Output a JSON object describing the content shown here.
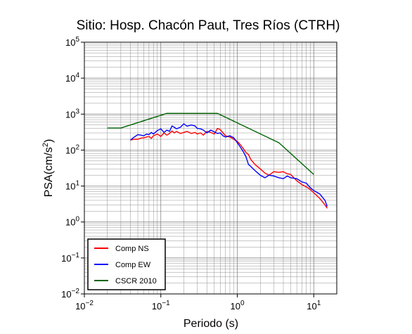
{
  "chart_data": {
    "type": "line",
    "title": "Sitio: Hosp. Chacón Paut, Tres Ríos (CTRH)",
    "xlabel": "Periodo (s)",
    "ylabel_base": "PSA(cm/s",
    "ylabel_sup": "2",
    "ylabel_end": ")",
    "x_scale": "log",
    "y_scale": "log",
    "xlim": [
      0.01,
      20
    ],
    "ylim": [
      0.01,
      100000
    ],
    "x_ticks": [
      {
        "value": 0.01,
        "base": "10",
        "exp": "−2"
      },
      {
        "value": 0.1,
        "base": "10",
        "exp": "−1"
      },
      {
        "value": 1,
        "base": "10",
        "exp": "0"
      },
      {
        "value": 10,
        "base": "10",
        "exp": "1"
      }
    ],
    "y_ticks": [
      {
        "value": 0.01,
        "base": "10",
        "exp": "−2"
      },
      {
        "value": 0.1,
        "base": "10",
        "exp": "−1"
      },
      {
        "value": 1,
        "base": "10",
        "exp": "0"
      },
      {
        "value": 10,
        "base": "10",
        "exp": "1"
      },
      {
        "value": 100,
        "base": "10",
        "exp": "2"
      },
      {
        "value": 1000,
        "base": "10",
        "exp": "3"
      },
      {
        "value": 10000,
        "base": "10",
        "exp": "4"
      },
      {
        "value": 100000,
        "base": "10",
        "exp": "5"
      }
    ],
    "grid": true,
    "legend_position": "bottom-left",
    "series": [
      {
        "name": "Comp NS",
        "color": "#ff0000",
        "x": [
          0.04,
          0.045,
          0.05,
          0.055,
          0.06,
          0.065,
          0.07,
          0.075,
          0.08,
          0.09,
          0.1,
          0.11,
          0.12,
          0.13,
          0.14,
          0.15,
          0.16,
          0.18,
          0.2,
          0.22,
          0.25,
          0.28,
          0.3,
          0.33,
          0.36,
          0.4,
          0.45,
          0.5,
          0.55,
          0.6,
          0.65,
          0.7,
          0.8,
          0.9,
          1.0,
          1.1,
          1.2,
          1.3,
          1.4,
          1.5,
          1.7,
          2.0,
          2.3,
          2.6,
          3.0,
          3.5,
          4.0,
          4.5,
          5.0,
          6.0,
          7.0,
          8.0,
          9.0,
          10.0,
          12.0,
          14.0,
          15.0
        ],
        "y": [
          190,
          200,
          200,
          215,
          220,
          230,
          240,
          210,
          250,
          280,
          240,
          300,
          260,
          290,
          340,
          300,
          330,
          290,
          310,
          330,
          290,
          310,
          280,
          300,
          260,
          330,
          310,
          280,
          400,
          370,
          300,
          250,
          230,
          200,
          175,
          140,
          110,
          85,
          75,
          55,
          40,
          30,
          23,
          20,
          25,
          24,
          25,
          22,
          21,
          14,
          11,
          9.5,
          8.0,
          6.5,
          4.5,
          3.0,
          2.4
        ]
      },
      {
        "name": "Comp EW",
        "color": "#0000ff",
        "x": [
          0.04,
          0.045,
          0.05,
          0.055,
          0.06,
          0.065,
          0.07,
          0.075,
          0.08,
          0.09,
          0.1,
          0.11,
          0.12,
          0.13,
          0.14,
          0.15,
          0.16,
          0.18,
          0.2,
          0.22,
          0.25,
          0.28,
          0.3,
          0.33,
          0.36,
          0.4,
          0.45,
          0.5,
          0.55,
          0.6,
          0.65,
          0.7,
          0.8,
          0.9,
          1.0,
          1.1,
          1.2,
          1.3,
          1.4,
          1.5,
          1.7,
          2.0,
          2.3,
          2.6,
          3.0,
          3.5,
          4.0,
          4.5,
          5.0,
          6.0,
          7.0,
          8.0,
          9.0,
          10.0,
          12.0,
          14.0,
          15.0
        ],
        "y": [
          190,
          230,
          270,
          260,
          250,
          280,
          270,
          310,
          280,
          350,
          390,
          310,
          360,
          330,
          470,
          430,
          390,
          430,
          540,
          460,
          500,
          470,
          400,
          390,
          360,
          300,
          360,
          320,
          290,
          300,
          250,
          230,
          250,
          220,
          160,
          120,
          90,
          65,
          40,
          35,
          27,
          20,
          17,
          20,
          19,
          17,
          16,
          19,
          17,
          16,
          13,
          12,
          9.0,
          7.5,
          6.0,
          4.0,
          2.7
        ]
      },
      {
        "name": "CSCR 2010",
        "color": "#006400",
        "x": [
          0.02,
          0.03,
          0.12,
          0.55,
          3.5,
          10.0
        ],
        "y": [
          410,
          410,
          1050,
          1050,
          160,
          21
        ]
      }
    ]
  }
}
